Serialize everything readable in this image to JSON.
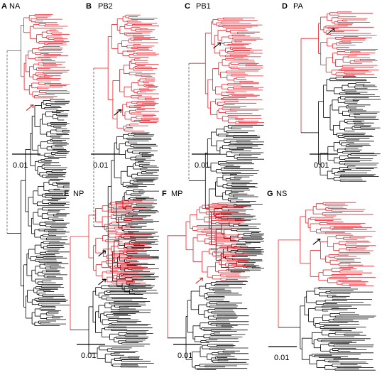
{
  "colors": {
    "highlight": "#e8202a",
    "base": "#000000",
    "dashed": "#555555"
  },
  "scale_label": "0.01",
  "panels": [
    {
      "letter": "A",
      "gene": "NA",
      "arrow_color": "red"
    },
    {
      "letter": "B",
      "gene": "PB2",
      "arrow_color": "black"
    },
    {
      "letter": "C",
      "gene": "PB1",
      "arrow_color": "black"
    },
    {
      "letter": "D",
      "gene": "PA",
      "arrow_color": "black"
    },
    {
      "letter": "E",
      "gene": "NP",
      "arrow_color": "black"
    },
    {
      "letter": "F",
      "gene": "MP",
      "arrow_color": "red"
    },
    {
      "letter": "G",
      "gene": "NS",
      "arrow_color": "black"
    }
  ]
}
